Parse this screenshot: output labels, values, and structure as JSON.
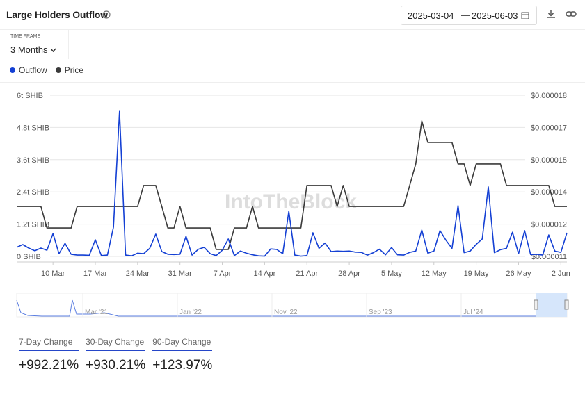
{
  "header": {
    "title": "Large Holders Outflow",
    "date_from": "2025-03-04",
    "date_to": "2025-06-03"
  },
  "time_frame": {
    "label": "TIME FRAME",
    "value": "3 Months"
  },
  "chart_data": {
    "type": "line",
    "categories": [
      null,
      null,
      null,
      null,
      null,
      null,
      "10 Mar",
      null,
      null,
      null,
      null,
      null,
      null,
      "17 Mar",
      null,
      null,
      null,
      null,
      null,
      null,
      "24 Mar",
      null,
      null,
      null,
      null,
      null,
      null,
      "31 Mar",
      null,
      null,
      null,
      null,
      null,
      null,
      "7 Apr",
      null,
      null,
      null,
      null,
      null,
      null,
      "14 Apr",
      null,
      null,
      null,
      null,
      null,
      null,
      "21 Apr",
      null,
      null,
      null,
      null,
      null,
      null,
      "28 Apr",
      null,
      null,
      null,
      null,
      null,
      null,
      "5 May",
      null,
      null,
      null,
      null,
      null,
      null,
      "12 May",
      null,
      null,
      null,
      null,
      null,
      null,
      "19 May",
      null,
      null,
      null,
      null,
      null,
      null,
      "26 May",
      null,
      null,
      null,
      null,
      null,
      null,
      "2 Jun",
      null
    ],
    "series": [
      {
        "name": "Outflow",
        "color": "#1440d4",
        "values": [
          0.34,
          0.44,
          0.31,
          0.21,
          0.31,
          0.23,
          0.85,
          0.1,
          0.49,
          0.08,
          0.05,
          0.05,
          0.04,
          0.62,
          0.03,
          0.05,
          1.09,
          5.4,
          0.05,
          0.02,
          0.12,
          0.1,
          0.3,
          0.83,
          0.18,
          0.08,
          0.07,
          0.08,
          0.75,
          0.05,
          0.26,
          0.34,
          0.1,
          0.03,
          0.23,
          0.65,
          0.03,
          0.2,
          0.12,
          0.06,
          0.02,
          0.01,
          0.28,
          0.26,
          0.1,
          1.68,
          0.05,
          0.01,
          0.03,
          0.88,
          0.3,
          0.5,
          0.18,
          0.2,
          0.19,
          0.2,
          0.16,
          0.15,
          0.05,
          0.14,
          0.27,
          0.06,
          0.33,
          0.06,
          0.05,
          0.15,
          0.2,
          0.98,
          0.12,
          0.2,
          0.96,
          0.6,
          0.3,
          1.89,
          0.14,
          0.2,
          0.45,
          0.65,
          2.59,
          0.14,
          0.25,
          0.3,
          0.9,
          0.1,
          0.96,
          0.07,
          0.08,
          0.05,
          0.8,
          0.2,
          0.15,
          0.88
        ]
      },
      {
        "name": "Price",
        "color": "#3a3a3a",
        "axis": "y2",
        "values": [
          1.323e-05,
          1.323e-05,
          1.323e-05,
          1.323e-05,
          1.323e-05,
          1.227e-05,
          1.227e-05,
          1.227e-05,
          1.227e-05,
          1.227e-05,
          1.323e-05,
          1.323e-05,
          1.323e-05,
          1.323e-05,
          1.323e-05,
          1.323e-05,
          1.323e-05,
          1.323e-05,
          1.323e-05,
          1.323e-05,
          1.323e-05,
          1.417e-05,
          1.417e-05,
          1.417e-05,
          1.323e-05,
          1.227e-05,
          1.227e-05,
          1.323e-05,
          1.227e-05,
          1.227e-05,
          1.227e-05,
          1.227e-05,
          1.227e-05,
          1.131e-05,
          1.131e-05,
          1.131e-05,
          1.227e-05,
          1.227e-05,
          1.227e-05,
          1.323e-05,
          1.227e-05,
          1.227e-05,
          1.227e-05,
          1.227e-05,
          1.227e-05,
          1.227e-05,
          1.227e-05,
          1.227e-05,
          1.417e-05,
          1.417e-05,
          1.417e-05,
          1.417e-05,
          1.417e-05,
          1.323e-05,
          1.417e-05,
          1.323e-05,
          1.323e-05,
          1.323e-05,
          1.323e-05,
          1.323e-05,
          1.323e-05,
          1.323e-05,
          1.323e-05,
          1.323e-05,
          1.323e-05,
          1.417e-05,
          1.513e-05,
          1.705e-05,
          1.609e-05,
          1.609e-05,
          1.609e-05,
          1.609e-05,
          1.609e-05,
          1.513e-05,
          1.513e-05,
          1.417e-05,
          1.513e-05,
          1.513e-05,
          1.513e-05,
          1.513e-05,
          1.513e-05,
          1.417e-05,
          1.417e-05,
          1.417e-05,
          1.417e-05,
          1.417e-05,
          1.417e-05,
          1.417e-05,
          1.417e-05,
          1.323e-05,
          1.323e-05,
          1.323e-05
        ]
      }
    ],
    "ylim": [
      0,
      6
    ],
    "yticks": [
      {
        "value": 0,
        "label": "0 SHIB"
      },
      {
        "value": 1.2,
        "label": "1.2t SHIB"
      },
      {
        "value": 2.4,
        "label": "2.4t SHIB"
      },
      {
        "value": 3.6,
        "label": "3.6t SHIB"
      },
      {
        "value": 4.8,
        "label": "4.8t SHIB"
      },
      {
        "value": 6,
        "label": "6t SHIB"
      }
    ],
    "y2lim": [
      1.1e-05,
      1.82e-05
    ],
    "y2ticks": [
      {
        "value": 1.1e-05,
        "label": "$0.000011"
      },
      {
        "value": 1.244e-05,
        "label": "$0.000012"
      },
      {
        "value": 1.388e-05,
        "label": "$0.000014"
      },
      {
        "value": 1.532e-05,
        "label": "$0.000015"
      },
      {
        "value": 1.676e-05,
        "label": "$0.000017"
      },
      {
        "value": 1.82e-05,
        "label": "$0.000018"
      }
    ],
    "grid": true,
    "watermark": "IntoTheBlock"
  },
  "navigator": {
    "labels": [
      "Mar '21",
      "Jan '22",
      "Nov '22",
      "Sep '23",
      "Jul '24"
    ]
  },
  "stats": [
    {
      "label": "7-Day Change",
      "value": "+992.21%"
    },
    {
      "label": "30-Day Change",
      "value": "+930.21%"
    },
    {
      "label": "90-Day Change",
      "value": "+123.97%"
    }
  ]
}
